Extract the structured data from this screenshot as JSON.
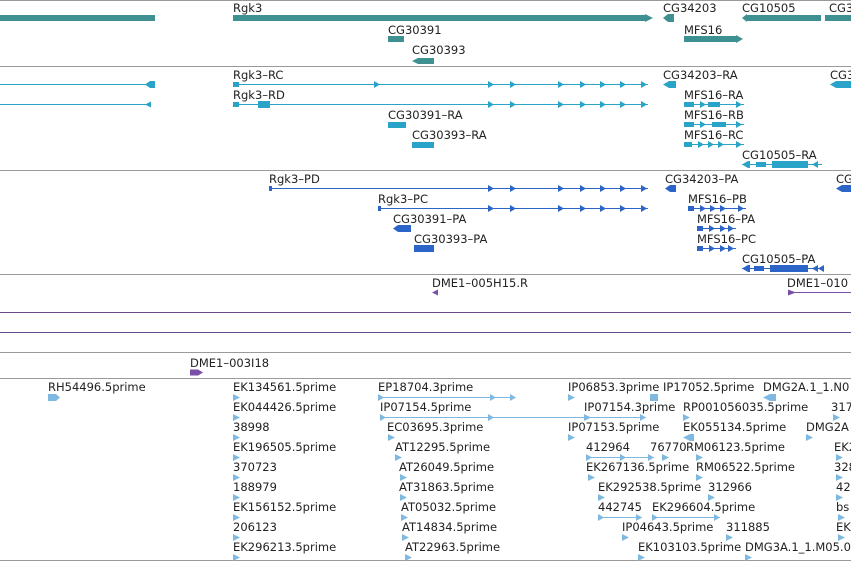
{
  "colors": {
    "gene": "#3f9090",
    "mrna": "#2aa3c8",
    "protein": "#2c64c8",
    "clone": "#7a4fa8",
    "est": "#7fb8e0",
    "separator": "#9a9a9a",
    "text": "#222222"
  },
  "tracks": {
    "genes": [
      {
        "name": "Rgk3",
        "label": "Rgk3"
      },
      {
        "name": "CG34203",
        "label": "CG34203"
      },
      {
        "name": "CG10505",
        "label": "CG10505"
      },
      {
        "name": "CG30391",
        "label": "CG30391"
      },
      {
        "name": "MFS16",
        "label": "MFS16"
      },
      {
        "name": "CG30393",
        "label": "CG30393"
      },
      {
        "name": "cut-right-gene",
        "label": "CG3"
      }
    ],
    "transcripts": [
      {
        "name": "Rgk3-RC",
        "label": "Rgk3–RC"
      },
      {
        "name": "CG34203-RA",
        "label": "CG34203–RA"
      },
      {
        "name": "cut-right-transcript",
        "label": "CG3"
      },
      {
        "name": "Rgk3-RD",
        "label": "Rgk3–RD"
      },
      {
        "name": "MFS16-RA",
        "label": "MFS16–RA"
      },
      {
        "name": "MFS16-RB",
        "label": "MFS16–RB"
      },
      {
        "name": "CG30391-RA",
        "label": "CG30391–RA"
      },
      {
        "name": "MFS16-RC",
        "label": "MFS16–RC"
      },
      {
        "name": "CG30393-RA",
        "label": "CG30393–RA"
      },
      {
        "name": "CG10505-RA",
        "label": "CG10505–RA"
      }
    ],
    "proteins": [
      {
        "name": "Rgk3-PD",
        "label": "Rgk3–PD"
      },
      {
        "name": "CG34203-PA",
        "label": "CG34203–PA"
      },
      {
        "name": "cut-right-protein",
        "label": "CG"
      },
      {
        "name": "Rgk3-PC",
        "label": "Rgk3–PC"
      },
      {
        "name": "MFS16-PB",
        "label": "MFS16–PB"
      },
      {
        "name": "CG30391-PA",
        "label": "CG30391–PA"
      },
      {
        "name": "MFS16-PA",
        "label": "MFS16–PA"
      },
      {
        "name": "CG30393-PA",
        "label": "CG30393–PA"
      },
      {
        "name": "MFS16-PC",
        "label": "MFS16–PC"
      },
      {
        "name": "CG10505-PA",
        "label": "CG10505–PA"
      }
    ],
    "clones": [
      {
        "name": "DME1-005H15.R",
        "label": "DME1–005H15.R"
      },
      {
        "name": "DME1-010-cut",
        "label": "DME1–010"
      },
      {
        "name": "DME1-003I18",
        "label": "DME1–003I18"
      }
    ],
    "ests": [
      "RH54496.5prime",
      "EK134561.5prime",
      "EK044426.5prime",
      "38998",
      "EK196505.5prime",
      "370723",
      "188979",
      "EK156152.5prime",
      "206123",
      "EK296213.5prime",
      "EP18704.3prime",
      "IP07154.5prime",
      "EC03695.3prime",
      "AT12295.5prime",
      "AT26049.5prime",
      "AT31863.5prime",
      "AT05032.5prime",
      "AT14834.5prime",
      "AT22963.5prime",
      "IP06853.3prime",
      "IP17052.5prime",
      "DMG2A.1_1.N0",
      "IP07154.3prime",
      "RP001056035.5prime",
      "317",
      "IP07153.5prime",
      "EK055134.5prime",
      "DMG2A",
      "412964",
      "76770",
      "RM06123.5prime",
      "EK2",
      "EK267136.5prime",
      "RM06522.5prime",
      "328",
      "EK292538.5prime",
      "312966",
      "42",
      "442745",
      "EK296604.5prime",
      "bs",
      "IP04643.5prime",
      "311885",
      "EK",
      "EK103103.5prime",
      "DMG3A.1_1.M05.0"
    ]
  }
}
